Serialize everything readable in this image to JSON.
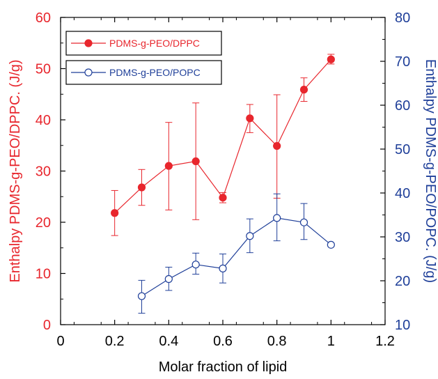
{
  "chart_data": {
    "type": "scatter",
    "xlabel": "Molar fraction of lipid",
    "ylabel_left": "Enthalpy PDMS-g-PEO/DPPC. (J/g)",
    "ylabel_right": "Enthalpy PDMS-g-PEO/POPC. (J/g)",
    "xlim": [
      0,
      1.2
    ],
    "ylim_left": [
      0,
      60
    ],
    "ylim_right": [
      10,
      80
    ],
    "x_ticks": [
      "0",
      "0.2",
      "0.4",
      "0.6",
      "0.8",
      "1",
      "1.2"
    ],
    "y_left_ticks": [
      "0",
      "10",
      "20",
      "30",
      "40",
      "50",
      "60"
    ],
    "y_right_ticks": [
      "10",
      "20",
      "30",
      "40",
      "50",
      "60",
      "70",
      "80"
    ],
    "grid": false,
    "legend_position": "top-left",
    "series": [
      {
        "name": "PDMS-g-PEO/DPPC",
        "axis": "left",
        "color": "#e8262d",
        "marker": "filled-circle",
        "x": [
          0.2,
          0.3,
          0.4,
          0.5,
          0.6,
          0.7,
          0.8,
          0.9,
          1.0
        ],
        "y": [
          21.8,
          26.8,
          31.0,
          31.9,
          24.8,
          40.3,
          34.9,
          45.9,
          51.8
        ],
        "err_low": [
          17.4,
          23.3,
          22.4,
          20.5,
          23.8,
          37.5,
          24.7,
          43.6,
          50.9
        ],
        "err_high": [
          26.2,
          30.3,
          39.5,
          43.3,
          25.8,
          43.0,
          44.9,
          48.2,
          52.8
        ]
      },
      {
        "name": "PDMS-g-PEO/POPC",
        "axis": "right",
        "color": "#1f3f99",
        "marker": "open-circle",
        "x": [
          0.3,
          0.4,
          0.5,
          0.6,
          0.7,
          0.8,
          0.9,
          1.0
        ],
        "y": [
          16.5,
          20.4,
          23.7,
          22.8,
          30.2,
          34.3,
          33.3,
          28.2
        ],
        "err_low": [
          12.6,
          17.8,
          21.5,
          19.5,
          26.4,
          29.1,
          29.4,
          28.2
        ],
        "err_high": [
          20.1,
          23.1,
          26.3,
          26.1,
          34.1,
          39.8,
          37.6,
          28.2
        ]
      }
    ]
  }
}
